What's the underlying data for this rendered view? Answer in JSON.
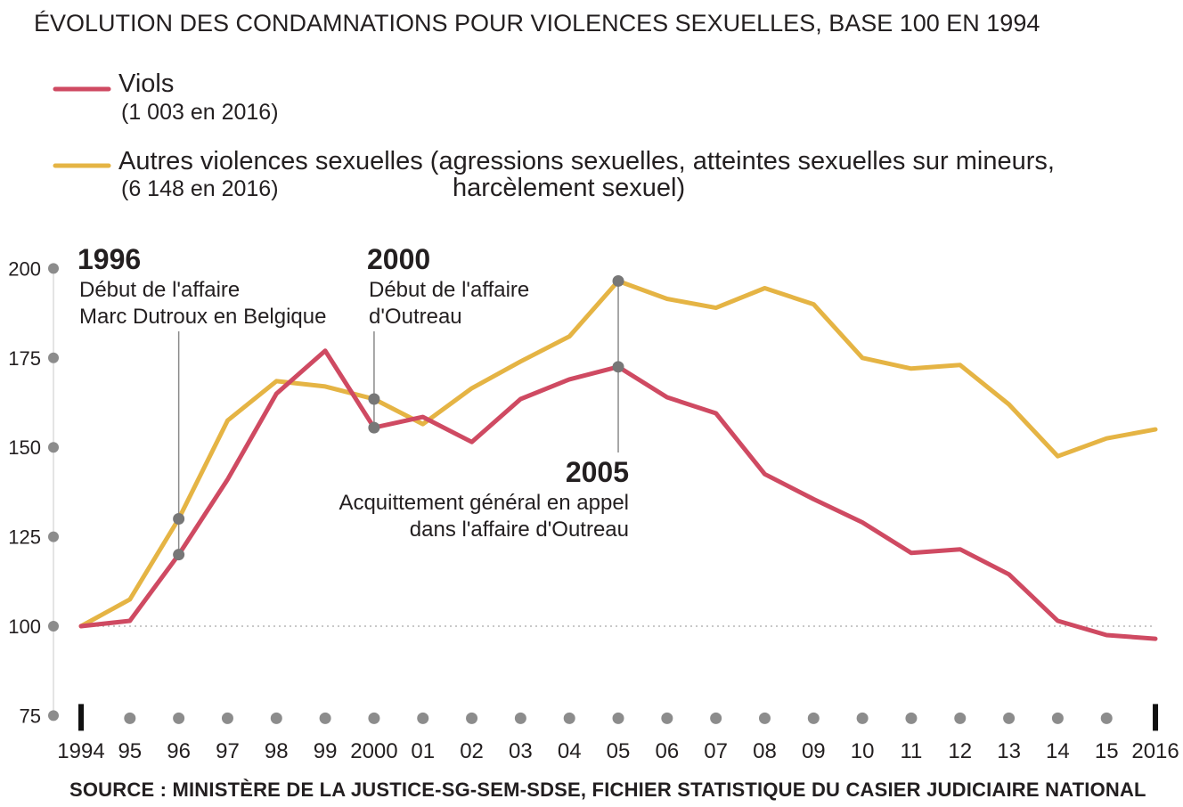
{
  "chart_data": {
    "type": "line",
    "title": "ÉVOLUTION DES CONDAMNATIONS POUR VIOLENCES SEXUELLES, BASE 100 EN 1994",
    "xlabel": "",
    "ylabel": "",
    "ylim": [
      75,
      200
    ],
    "yticks": [
      75,
      100,
      125,
      150,
      175,
      200
    ],
    "grid": false,
    "x": [
      1994,
      1995,
      1996,
      1997,
      1998,
      1999,
      2000,
      2001,
      2002,
      2003,
      2004,
      2005,
      2006,
      2007,
      2008,
      2009,
      2010,
      2011,
      2012,
      2013,
      2014,
      2015,
      2016
    ],
    "x_tick_labels": [
      "1994",
      "95",
      "96",
      "97",
      "98",
      "99",
      "2000",
      "01",
      "02",
      "03",
      "04",
      "05",
      "06",
      "07",
      "08",
      "09",
      "10",
      "11",
      "12",
      "13",
      "14",
      "15",
      "2016"
    ],
    "series": [
      {
        "name": "Viols",
        "note": "(1 003 en 2016)",
        "color": "#cf4a62",
        "values": [
          100,
          101.5,
          120,
          141,
          165,
          177,
          155.5,
          158.5,
          151.5,
          163.5,
          169,
          172.5,
          164,
          159.5,
          142.5,
          135.5,
          129,
          120.5,
          121.5,
          114.5,
          101.5,
          97.5,
          96.5
        ]
      },
      {
        "name": "Autres violences sexuelles (agressions sexuelles, atteintes sexuelles sur mineurs,",
        "name_line2": "harcèlement sexuel)",
        "note": "(6 148 en 2016)",
        "color": "#e5b444",
        "values": [
          100,
          107.5,
          130,
          157.5,
          168.5,
          167,
          163.5,
          156.5,
          166.5,
          174,
          181,
          196.5,
          191.5,
          189,
          194.5,
          190,
          175,
          172,
          173,
          162,
          147.5,
          152.5,
          155
        ]
      }
    ],
    "reference_line": 100,
    "annotations": [
      {
        "year": "1996",
        "lines": [
          "Début de l'affaire",
          "Marc Dutroux en Belgique"
        ],
        "x": 1996,
        "points": [
          130,
          120
        ]
      },
      {
        "year": "2000",
        "lines": [
          "Début de l'affaire",
          "d'Outreau"
        ],
        "x": 2000,
        "points": [
          163.5,
          155.5
        ]
      },
      {
        "year": "2005",
        "lines": [
          "Acquittement général en appel",
          "dans l'affaire d'Outreau"
        ],
        "x": 2005,
        "points": [
          196.5,
          172.5
        ]
      }
    ],
    "source": "SOURCE : MINISTÈRE DE LA JUSTICE-SG-SEM-SDSE, FICHIER STATISTIQUE DU CASIER JUDICIAIRE NATIONAL",
    "colors": {
      "axis": "#9b9b9b",
      "dots": "#8c8c8c",
      "text": "#231f20"
    }
  }
}
